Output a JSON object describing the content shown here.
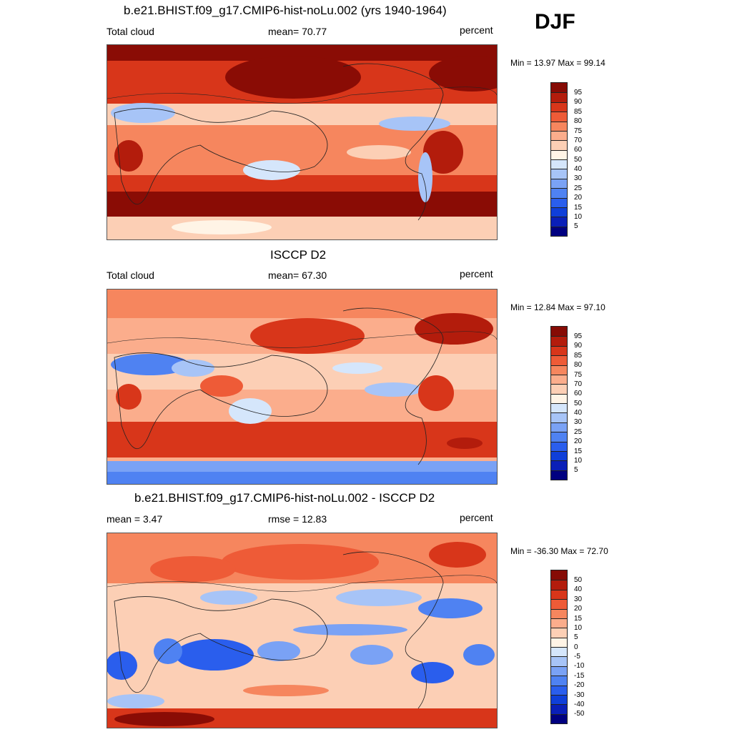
{
  "season": "DJF",
  "colors": {
    "seq": [
      "#000080",
      "#0a1fb8",
      "#0f3fd9",
      "#2a5eed",
      "#4f82f2",
      "#7aa2f5",
      "#a7c4f7",
      "#d5e6fb",
      "#fff4e6",
      "#fccfb5",
      "#fbad8c",
      "#f6865e",
      "#ee5b37",
      "#d8361a",
      "#b31c0c",
      "#860b05"
    ],
    "diff": [
      "#000080",
      "#0a1fb8",
      "#0f3fd9",
      "#2a5eed",
      "#4f82f2",
      "#7aa2f5",
      "#a7c4f7",
      "#d5e6fb",
      "#fff4e6",
      "#fccfb5",
      "#fbad8c",
      "#f6865e",
      "#ee5b37",
      "#d8361a",
      "#b31c0c",
      "#860b05"
    ]
  },
  "panels": [
    {
      "title": "b.e21.BHIST.f09_g17.CMIP6-hist-noLu.002 (yrs 1940-1964)",
      "left_label": "Total cloud",
      "center_label": "mean=  70.77",
      "right_label": "percent",
      "minmax": "Min =  13.97 Max =  99.14",
      "colorbar_labels": [
        "95",
        "90",
        "85",
        "80",
        "75",
        "70",
        "60",
        "50",
        "40",
        "30",
        "25",
        "20",
        "15",
        "10",
        "5"
      ]
    },
    {
      "title": "ISCCP D2",
      "left_label": "Total cloud",
      "center_label": "mean=  67.30",
      "right_label": "percent",
      "minmax": "Min =  12.84 Max =  97.10",
      "colorbar_labels": [
        "95",
        "90",
        "85",
        "80",
        "75",
        "70",
        "60",
        "50",
        "40",
        "30",
        "25",
        "20",
        "15",
        "10",
        "5"
      ]
    },
    {
      "title": "b.e21.BHIST.f09_g17.CMIP6-hist-noLu.002 - ISCCP D2",
      "left_label": "mean =   3.47",
      "center_label": "rmse =  12.83",
      "right_label": "percent",
      "minmax": "Min = -36.30 Max =  72.70",
      "colorbar_labels": [
        "50",
        "40",
        "30",
        "20",
        "15",
        "10",
        "5",
        "0",
        "-5",
        "-10",
        "-15",
        "-20",
        "-30",
        "-40",
        "-50"
      ]
    }
  ]
}
